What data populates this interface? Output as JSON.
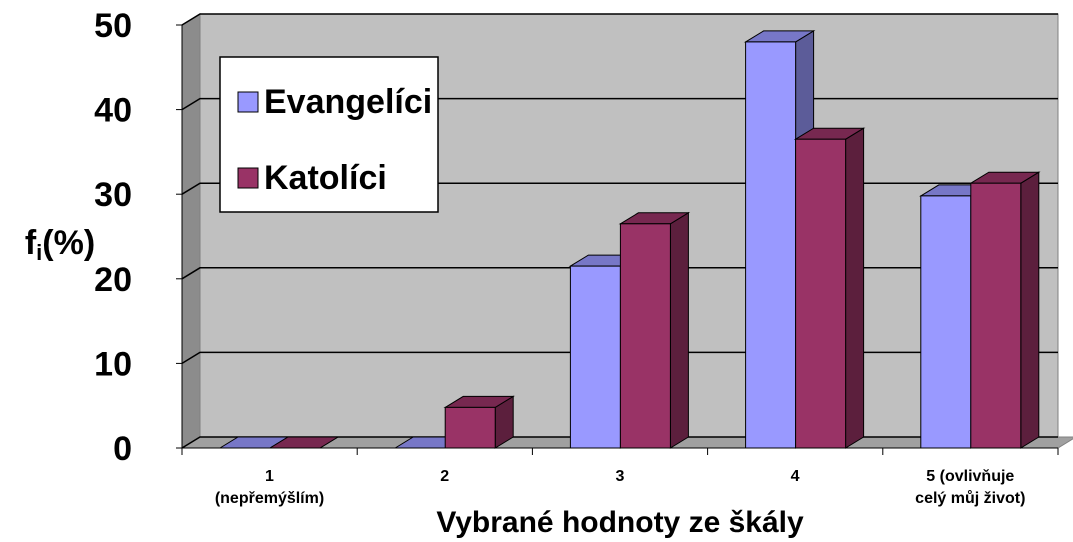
{
  "chart_data": {
    "type": "bar3d",
    "y_label": [
      "f",
      "i",
      "(%)"
    ],
    "x_label": "Vybrané hodnoty ze škály",
    "categories": [
      "1\n(nepřemýšlím)",
      "2",
      "3",
      "4",
      "5 (ovlivňuje\ncelý můj život)"
    ],
    "series": [
      {
        "name": "Evangelíci",
        "color": "#9999ff",
        "values": [
          0,
          0,
          21.5,
          48,
          29.8
        ]
      },
      {
        "name": "Katolíci",
        "color": "#993366",
        "values": [
          0,
          4.8,
          26.5,
          36.5,
          31.3
        ]
      }
    ],
    "ylim": [
      0,
      50
    ],
    "yticks": [
      0,
      10,
      20,
      30,
      40,
      50
    ],
    "grid": true,
    "legend": "upper left"
  }
}
